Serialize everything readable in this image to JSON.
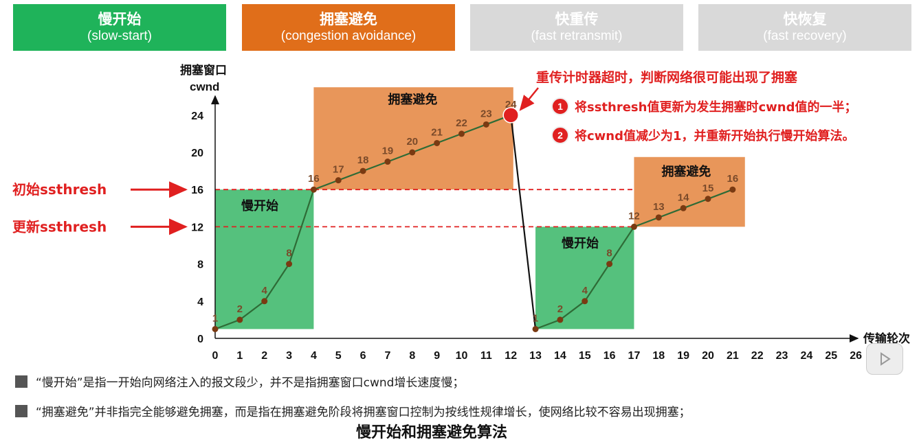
{
  "phases": [
    {
      "zh": "慢开始",
      "en": "(slow-start)"
    },
    {
      "zh": "拥塞避免",
      "en": "(congestion avoidance)"
    },
    {
      "zh": "快重传",
      "en": "(fast retransmit)"
    },
    {
      "zh": "快恢复",
      "en": "(fast recovery)"
    }
  ],
  "colors": {
    "slow_start": "#1fb35a",
    "congestion_avoidance": "#e06e1a",
    "inactive": "#d9d9d9",
    "slow_start_region": "#55c17d",
    "avoidance_region": "#e8965a",
    "line": "#2e6b36",
    "point": "#7a3a12",
    "red": "#e02020"
  },
  "chart_data": {
    "type": "line",
    "ylabel_zh": "拥塞窗口",
    "ylabel_en": "cwnd",
    "xlabel": "传输轮次",
    "x_ticks": [
      0,
      1,
      2,
      3,
      4,
      5,
      6,
      7,
      8,
      9,
      10,
      11,
      12,
      13,
      14,
      15,
      16,
      17,
      18,
      19,
      20,
      21,
      22,
      23,
      24,
      25,
      26
    ],
    "y_ticks": [
      0,
      4,
      8,
      12,
      16,
      20,
      24
    ],
    "xlim": [
      0,
      26
    ],
    "ylim": [
      0,
      24
    ],
    "series": [
      {
        "x": [
          0,
          1,
          2,
          3,
          4,
          5,
          6,
          7,
          8,
          9,
          10,
          11,
          12
        ],
        "y": [
          1,
          2,
          4,
          8,
          16,
          17,
          18,
          19,
          20,
          21,
          22,
          23,
          24
        ]
      },
      {
        "x": [
          12,
          13
        ],
        "y": [
          24,
          1
        ]
      },
      {
        "x": [
          13,
          14,
          15,
          16,
          17,
          18,
          19,
          20,
          21
        ],
        "y": [
          1,
          2,
          4,
          8,
          12,
          13,
          14,
          15,
          16
        ]
      }
    ],
    "point_labels": [
      {
        "x": 0,
        "y": 1,
        "text": "1"
      },
      {
        "x": 1,
        "y": 2,
        "text": "2"
      },
      {
        "x": 2,
        "y": 4,
        "text": "4"
      },
      {
        "x": 3,
        "y": 8,
        "text": "8"
      },
      {
        "x": 4,
        "y": 16,
        "text": "16"
      },
      {
        "x": 5,
        "y": 17,
        "text": "17"
      },
      {
        "x": 6,
        "y": 18,
        "text": "18"
      },
      {
        "x": 7,
        "y": 19,
        "text": "19"
      },
      {
        "x": 8,
        "y": 20,
        "text": "20"
      },
      {
        "x": 9,
        "y": 21,
        "text": "21"
      },
      {
        "x": 10,
        "y": 22,
        "text": "22"
      },
      {
        "x": 11,
        "y": 23,
        "text": "23"
      },
      {
        "x": 12,
        "y": 24,
        "text": "24"
      },
      {
        "x": 13,
        "y": 1,
        "text": "1"
      },
      {
        "x": 14,
        "y": 2,
        "text": "2"
      },
      {
        "x": 15,
        "y": 4,
        "text": "4"
      },
      {
        "x": 16,
        "y": 8,
        "text": "8"
      },
      {
        "x": 17,
        "y": 12,
        "text": "12"
      },
      {
        "x": 18,
        "y": 13,
        "text": "13"
      },
      {
        "x": 19,
        "y": 14,
        "text": "14"
      },
      {
        "x": 20,
        "y": 15,
        "text": "15"
      },
      {
        "x": 21,
        "y": 16,
        "text": "16"
      }
    ],
    "regions": [
      {
        "label": "慢开始",
        "x0": 0,
        "x1": 4,
        "y0": 1,
        "y1": 16,
        "kind": "slow"
      },
      {
        "label": "拥塞避免",
        "x0": 4,
        "x1": 12.1,
        "y0": 16,
        "y1": 27,
        "kind": "avoid"
      },
      {
        "label": "慢开始",
        "x0": 13,
        "x1": 17,
        "y0": 1,
        "y1": 12,
        "kind": "slow"
      },
      {
        "label": "拥塞避免",
        "x0": 17,
        "x1": 21.5,
        "y0": 12,
        "y1": 19.5,
        "kind": "avoid"
      }
    ],
    "thresholds": [
      {
        "label": "初始ssthresh",
        "value": 16
      },
      {
        "label": "更新ssthresh",
        "value": 12
      }
    ],
    "timeout_event": {
      "x": 12,
      "y": 24,
      "title": "重传计时器超时，判断网络很可能出现了拥塞",
      "steps": [
        {
          "num": "1",
          "text": "将ssthresh值更新为发生拥塞时cwnd值的一半；"
        },
        {
          "num": "2",
          "text": "将cwnd值减少为1，并重新开始执行慢开始算法。"
        }
      ]
    }
  },
  "notes": [
    "“慢开始”是指一开始向网络注入的报文段少，并不是指拥塞窗口cwnd增长速度慢；",
    "“拥塞避免”并非指完全能够避免拥塞，而是指在拥塞避免阶段将拥塞窗口控制为按线性规律增长，使网络比较不容易出现拥塞；"
  ],
  "caption": "慢开始和拥塞避免算法"
}
